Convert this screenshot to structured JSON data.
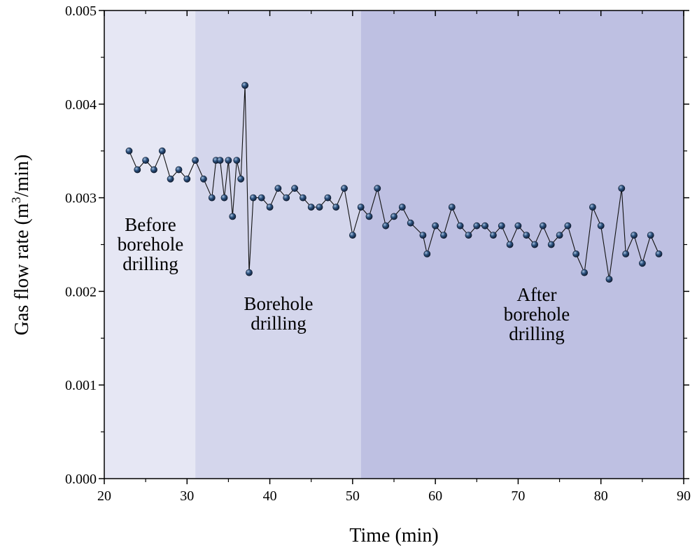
{
  "chart_data": {
    "type": "line",
    "title": "",
    "xlabel": "Time (min)",
    "ylabel_parts": {
      "base": "Gas flow rate (m",
      "sup": "3",
      "end": "/min)"
    },
    "xlim": [
      20,
      90
    ],
    "ylim": [
      0.0,
      0.005
    ],
    "x_ticks": [
      20,
      30,
      40,
      50,
      60,
      70,
      80,
      90
    ],
    "x_tick_labels": [
      "20",
      "30",
      "40",
      "50",
      "60",
      "70",
      "80",
      "90"
    ],
    "y_ticks": [
      0.0,
      0.001,
      0.002,
      0.003,
      0.004,
      0.005
    ],
    "y_tick_labels": [
      "0.000",
      "0.001",
      "0.002",
      "0.003",
      "0.004",
      "0.005"
    ],
    "regions": [
      {
        "name": "Before borehole drilling",
        "x_start": 20,
        "x_end": 31,
        "color": "#e6e7f4",
        "label_lines": [
          "Before",
          "borehole",
          "drilling"
        ]
      },
      {
        "name": "Borehole drilling",
        "x_start": 31,
        "x_end": 51,
        "color": "#d4d6ec",
        "label_lines": [
          "Borehole",
          "drilling"
        ]
      },
      {
        "name": "After borehole drilling",
        "x_start": 51,
        "x_end": 90,
        "color": "#bec0e2",
        "label_lines": [
          "After",
          "borehole",
          "drilling"
        ]
      }
    ],
    "series": [
      {
        "name": "Gas flow rate",
        "line_color": "#111111",
        "marker_color": "#1f3a63",
        "x": [
          23,
          24,
          25,
          26,
          27,
          28,
          29,
          30,
          31,
          32,
          33,
          33.5,
          34,
          34.5,
          35,
          35.5,
          36,
          36.5,
          37,
          37.5,
          38,
          39,
          40,
          41,
          42,
          43,
          44,
          45,
          46,
          47,
          48,
          49,
          50,
          51,
          52,
          53,
          54,
          55,
          56,
          57,
          58.5,
          59,
          60,
          61,
          62,
          63,
          64,
          65,
          66,
          67,
          68,
          69,
          70,
          71,
          72,
          73,
          74,
          75,
          76,
          77,
          78,
          79,
          80,
          81,
          82.5,
          83,
          84,
          85,
          86,
          87
        ],
        "values": [
          0.0035,
          0.0033,
          0.0034,
          0.0033,
          0.0035,
          0.0032,
          0.0033,
          0.0032,
          0.0034,
          0.0032,
          0.003,
          0.0034,
          0.0034,
          0.003,
          0.0034,
          0.0028,
          0.0034,
          0.0032,
          0.0042,
          0.0022,
          0.003,
          0.003,
          0.0029,
          0.0031,
          0.003,
          0.0031,
          0.003,
          0.0029,
          0.0029,
          0.003,
          0.0029,
          0.0031,
          0.0026,
          0.0029,
          0.0028,
          0.0031,
          0.0027,
          0.0028,
          0.0029,
          0.00273,
          0.0026,
          0.0024,
          0.0027,
          0.0026,
          0.0029,
          0.0027,
          0.0026,
          0.0027,
          0.0027,
          0.0026,
          0.0027,
          0.0025,
          0.0027,
          0.0026,
          0.0025,
          0.0027,
          0.0025,
          0.0026,
          0.0027,
          0.0024,
          0.0022,
          0.0029,
          0.0027,
          0.00213,
          0.0031,
          0.0024,
          0.0026,
          0.0023,
          0.0026,
          0.0024
        ]
      }
    ]
  }
}
